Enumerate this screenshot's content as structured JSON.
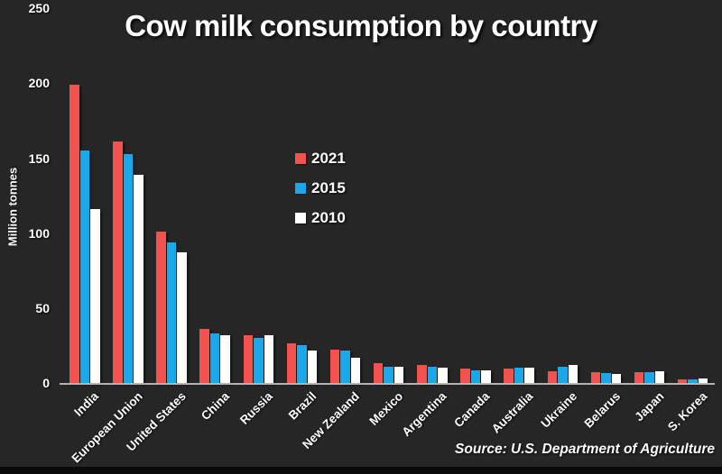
{
  "title": "Cow milk consumption by country",
  "y_axis_label": "Million tonnes",
  "source": "Source: U.S. Department of Agriculture",
  "colors": {
    "background": "#262626",
    "bar_2021": "#f2524e",
    "bar_2015": "#1ba7e8",
    "bar_2010": "#ffffff",
    "axis_line": "#b3b3b3",
    "text": "#ffffff",
    "bottom_edge": "#0a0a0a"
  },
  "chart_data": {
    "type": "bar",
    "title": "Cow milk consumption by country",
    "xlabel": "",
    "ylabel": "Million tonnes",
    "ylim": [
      0,
      250
    ],
    "yticks": [
      250,
      200,
      150,
      100,
      50,
      0
    ],
    "grid": false,
    "legend_position": "inside plot, upper-middle-left, vertical",
    "categories": [
      "India",
      "European Union",
      "United States",
      "China",
      "Russia",
      "Brazil",
      "New Zealand",
      "Mexico",
      "Argentina",
      "Canada",
      "Australia",
      "Ukraine",
      "Belarus",
      "Japan",
      "S. Korea"
    ],
    "series": [
      {
        "name": "2021",
        "color": "#f2524e",
        "values": [
          199,
          161,
          101,
          36,
          32,
          26.5,
          22,
          13,
          12,
          9.5,
          9.5,
          8,
          7.5,
          7.5,
          2.3
        ]
      },
      {
        "name": "2015",
        "color": "#1ba7e8",
        "values": [
          155,
          153,
          94,
          33,
          30,
          25,
          21.5,
          11,
          11,
          8.7,
          10.5,
          11,
          6.8,
          7.5,
          2.2
        ]
      },
      {
        "name": "2010",
        "color": "#ffffff",
        "values": [
          116,
          139,
          87,
          32,
          32,
          21.5,
          17,
          11,
          10,
          8.2,
          10,
          12,
          6.3,
          8,
          2.8
        ]
      }
    ]
  }
}
